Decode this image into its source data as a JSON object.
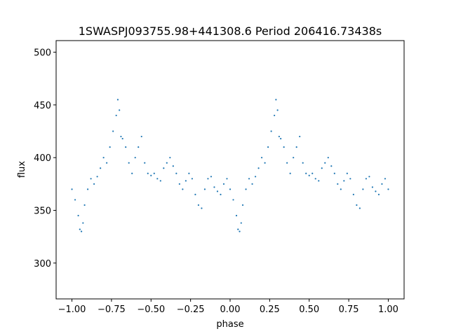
{
  "chart_data": {
    "type": "scatter",
    "title": "1SWASPJ093755.98+441308.6 Period 206416.73438s",
    "xlabel": "phase",
    "ylabel": "flux",
    "xlim": [
      -1.1,
      1.1
    ],
    "ylim": [
      266,
      511
    ],
    "x_ticks": [
      -1.0,
      -0.75,
      -0.5,
      -0.25,
      0.0,
      0.25,
      0.5,
      0.75,
      1.0
    ],
    "x_tick_labels": [
      "−1.00",
      "−0.75",
      "−0.50",
      "−0.25",
      "0.00",
      "0.25",
      "0.50",
      "0.75",
      "1.00"
    ],
    "y_ticks": [
      300,
      350,
      400,
      450,
      500
    ],
    "y_tick_labels": [
      "300",
      "350",
      "400",
      "450",
      "500"
    ],
    "grid": false,
    "marker_color": "#1f77b4",
    "series": [
      {
        "x": [
          -1.0,
          -0.98,
          -0.96,
          -0.95,
          -0.94,
          -0.93,
          -0.92,
          -0.9,
          -0.88,
          -0.86,
          -0.84,
          -0.82,
          -0.8,
          -0.78,
          -0.76,
          -0.74,
          -0.72,
          -0.71,
          -0.7,
          -0.69,
          -0.68,
          -0.66,
          -0.64,
          -0.62,
          -0.6,
          -0.58,
          -0.56,
          -0.54,
          -0.52,
          -0.5,
          -0.48,
          -0.46,
          -0.44,
          -0.42,
          -0.4,
          -0.38,
          -0.36,
          -0.34,
          -0.32,
          -0.3,
          -0.28,
          -0.26,
          -0.24,
          -0.22,
          -0.2,
          -0.18,
          -0.16,
          -0.14,
          -0.12,
          -0.1,
          -0.08,
          -0.06,
          -0.04,
          -0.02,
          0.0,
          0.02,
          0.04,
          0.05,
          0.06,
          0.07,
          0.08,
          0.1,
          0.12,
          0.14,
          0.16,
          0.18,
          0.2,
          0.22,
          0.24,
          0.26,
          0.28,
          0.29,
          0.3,
          0.31,
          0.32,
          0.34,
          0.36,
          0.38,
          0.4,
          0.42,
          0.44,
          0.46,
          0.48,
          0.5,
          0.52,
          0.54,
          0.56,
          0.58,
          0.6,
          0.62,
          0.64,
          0.66,
          0.68,
          0.7,
          0.72,
          0.74,
          0.76,
          0.78,
          0.8,
          0.82,
          0.84,
          0.86,
          0.88,
          0.9,
          0.92,
          0.94,
          0.96,
          0.98,
          1.0
        ],
        "y": [
          370,
          360,
          345,
          332,
          330,
          338,
          355,
          370,
          380,
          375,
          382,
          390,
          400,
          395,
          410,
          425,
          440,
          455,
          445,
          420,
          418,
          410,
          395,
          385,
          400,
          410,
          420,
          395,
          385,
          383,
          385,
          380,
          378,
          390,
          395,
          400,
          392,
          385,
          375,
          370,
          378,
          385,
          380,
          365,
          355,
          352,
          370,
          380,
          382,
          372,
          368,
          365,
          375,
          380,
          370,
          360,
          345,
          332,
          330,
          338,
          355,
          370,
          380,
          375,
          382,
          390,
          400,
          395,
          410,
          425,
          440,
          455,
          445,
          420,
          418,
          410,
          395,
          385,
          400,
          410,
          420,
          395,
          385,
          383,
          385,
          380,
          378,
          390,
          395,
          400,
          392,
          385,
          375,
          370,
          378,
          385,
          380,
          365,
          355,
          352,
          370,
          380,
          382,
          372,
          368,
          365,
          375,
          380,
          370
        ]
      }
    ]
  }
}
